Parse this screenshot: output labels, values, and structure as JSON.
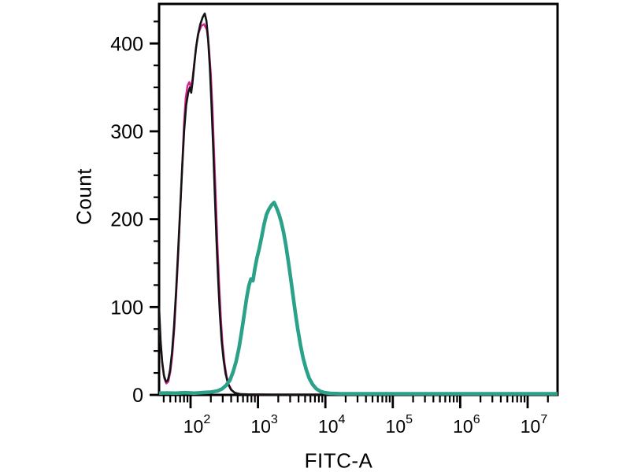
{
  "figure": {
    "background_color": "#ffffff",
    "axis_color": "#000000"
  },
  "chart_data": {
    "type": "line",
    "subtype": "flow-cytometry-histogram",
    "title": "",
    "xlabel": "FITC-A",
    "ylabel": "Count",
    "x_scale": "log10",
    "x_range_log10": [
      1.533,
      7.444
    ],
    "ylim": [
      0,
      445
    ],
    "grid": "off",
    "legend": "none",
    "y_major_ticks": [
      0,
      100,
      200,
      300,
      400
    ],
    "y_minor_step": 25,
    "x_tick_base": "10",
    "x_major_exponents": [
      2,
      3,
      4,
      5,
      6,
      7
    ],
    "series": [
      {
        "name": "magenta",
        "color": "#d8218f",
        "stroke_width": 2.4,
        "points": [
          [
            1.533,
            95
          ],
          [
            1.557,
            58
          ],
          [
            1.582,
            34
          ],
          [
            1.61,
            19
          ],
          [
            1.64,
            13
          ],
          [
            1.67,
            15
          ],
          [
            1.7,
            26
          ],
          [
            1.73,
            46
          ],
          [
            1.76,
            76
          ],
          [
            1.79,
            118
          ],
          [
            1.82,
            164
          ],
          [
            1.85,
            214
          ],
          [
            1.878,
            264
          ],
          [
            1.902,
            308
          ],
          [
            1.928,
            338
          ],
          [
            1.955,
            352
          ],
          [
            1.98,
            356
          ],
          [
            2.005,
            350
          ],
          [
            2.03,
            360
          ],
          [
            2.055,
            378
          ],
          [
            2.085,
            398
          ],
          [
            2.12,
            412
          ],
          [
            2.16,
            420
          ],
          [
            2.2,
            422
          ],
          [
            2.24,
            416
          ],
          [
            2.27,
            398
          ],
          [
            2.3,
            366
          ],
          [
            2.325,
            326
          ],
          [
            2.35,
            276
          ],
          [
            2.375,
            222
          ],
          [
            2.4,
            170
          ],
          [
            2.425,
            124
          ],
          [
            2.45,
            87
          ],
          [
            2.475,
            58
          ],
          [
            2.505,
            36
          ],
          [
            2.535,
            21
          ],
          [
            2.57,
            11
          ],
          [
            2.615,
            5
          ],
          [
            2.67,
            2
          ],
          [
            2.75,
            0.8
          ],
          [
            2.9,
            0.5
          ],
          [
            3.2,
            0.35
          ],
          [
            7.444,
            0.35
          ]
        ]
      },
      {
        "name": "black",
        "color": "#141414",
        "stroke_width": 2.6,
        "points": [
          [
            1.533,
            100
          ],
          [
            1.555,
            62
          ],
          [
            1.578,
            38
          ],
          [
            1.605,
            22
          ],
          [
            1.635,
            15
          ],
          [
            1.665,
            17
          ],
          [
            1.695,
            28
          ],
          [
            1.725,
            48
          ],
          [
            1.755,
            78
          ],
          [
            1.785,
            118
          ],
          [
            1.815,
            162
          ],
          [
            1.845,
            210
          ],
          [
            1.875,
            258
          ],
          [
            1.905,
            300
          ],
          [
            1.935,
            330
          ],
          [
            1.965,
            344
          ],
          [
            1.99,
            350
          ],
          [
            2.01,
            344
          ],
          [
            2.03,
            356
          ],
          [
            2.055,
            376
          ],
          [
            2.08,
            394
          ],
          [
            2.11,
            410
          ],
          [
            2.145,
            422
          ],
          [
            2.18,
            430
          ],
          [
            2.21,
            434
          ],
          [
            2.235,
            426
          ],
          [
            2.26,
            406
          ],
          [
            2.285,
            374
          ],
          [
            2.31,
            332
          ],
          [
            2.335,
            282
          ],
          [
            2.36,
            228
          ],
          [
            2.385,
            176
          ],
          [
            2.41,
            130
          ],
          [
            2.435,
            92
          ],
          [
            2.46,
            62
          ],
          [
            2.49,
            40
          ],
          [
            2.52,
            24
          ],
          [
            2.555,
            13
          ],
          [
            2.6,
            6
          ],
          [
            2.655,
            2.5
          ],
          [
            2.73,
            1
          ],
          [
            2.85,
            0.6
          ],
          [
            3.2,
            0.4
          ],
          [
            7.444,
            0.4
          ]
        ]
      },
      {
        "name": "teal",
        "color": "#2aa188",
        "stroke_width": 4.6,
        "points": [
          [
            1.533,
            2
          ],
          [
            1.65,
            2.2
          ],
          [
            1.78,
            2
          ],
          [
            1.92,
            2.5
          ],
          [
            2.05,
            2
          ],
          [
            2.18,
            2.6
          ],
          [
            2.3,
            3.2
          ],
          [
            2.4,
            4.5
          ],
          [
            2.47,
            7
          ],
          [
            2.53,
            11
          ],
          [
            2.585,
            17
          ],
          [
            2.63,
            26
          ],
          [
            2.675,
            38
          ],
          [
            2.72,
            54
          ],
          [
            2.76,
            73
          ],
          [
            2.8,
            94
          ],
          [
            2.835,
            112
          ],
          [
            2.865,
            124
          ],
          [
            2.895,
            132
          ],
          [
            2.925,
            130
          ],
          [
            2.955,
            144
          ],
          [
            2.985,
            156
          ],
          [
            3.02,
            167
          ],
          [
            3.055,
            180
          ],
          [
            3.09,
            194
          ],
          [
            3.125,
            205
          ],
          [
            3.16,
            211
          ],
          [
            3.2,
            216
          ],
          [
            3.24,
            219
          ],
          [
            3.275,
            213
          ],
          [
            3.31,
            206
          ],
          [
            3.345,
            197
          ],
          [
            3.38,
            185
          ],
          [
            3.415,
            170
          ],
          [
            3.45,
            152
          ],
          [
            3.485,
            133
          ],
          [
            3.52,
            113
          ],
          [
            3.555,
            93
          ],
          [
            3.59,
            75
          ],
          [
            3.63,
            57
          ],
          [
            3.67,
            42
          ],
          [
            3.715,
            29
          ],
          [
            3.76,
            19
          ],
          [
            3.81,
            12
          ],
          [
            3.865,
            7
          ],
          [
            3.925,
            4
          ],
          [
            3.99,
            2.5
          ],
          [
            4.07,
            1.8
          ],
          [
            4.2,
            1.4
          ],
          [
            4.5,
            1.3
          ],
          [
            5.0,
            1.3
          ],
          [
            5.6,
            1.3
          ],
          [
            6.2,
            1.3
          ],
          [
            6.8,
            1.3
          ],
          [
            7.444,
            1.3
          ]
        ]
      }
    ]
  }
}
